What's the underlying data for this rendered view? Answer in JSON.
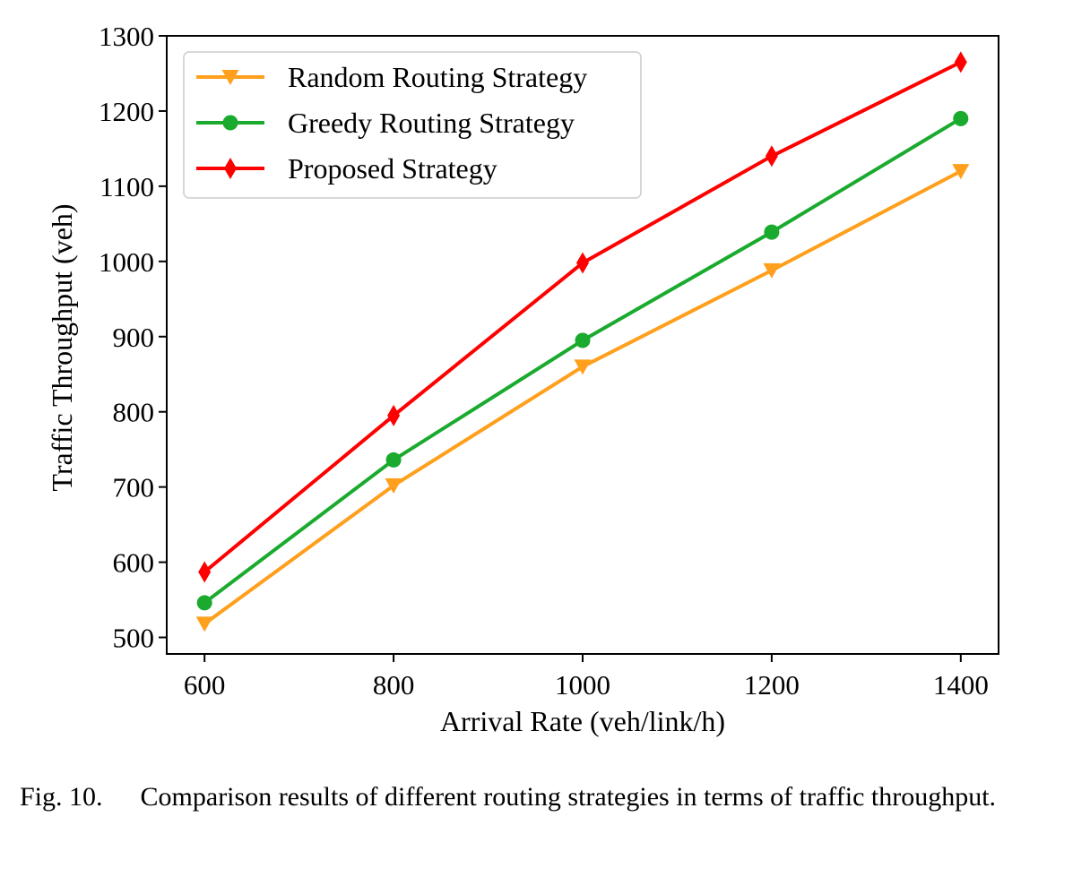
{
  "chart_data": {
    "type": "line",
    "xlabel": "Arrival Rate (veh/link/h)",
    "ylabel": "Traffic Throughput (veh)",
    "x": [
      600,
      800,
      1000,
      1200,
      1400
    ],
    "xlim": [
      560,
      1440
    ],
    "ylim": [
      478,
      1300
    ],
    "xticks": [
      600,
      800,
      1000,
      1200,
      1400
    ],
    "yticks": [
      500,
      600,
      700,
      800,
      900,
      1000,
      1100,
      1200,
      1300
    ],
    "grid": false,
    "legend_position": "top-left",
    "series": [
      {
        "name": "Random Routing Strategy",
        "color": "#ff9f1c",
        "marker": "triangle-down",
        "values": [
          518,
          702,
          860,
          988,
          1120
        ]
      },
      {
        "name": "Greedy Routing Strategy",
        "color": "#1aaa2e",
        "marker": "circle",
        "values": [
          546,
          736,
          895,
          1039,
          1190
        ]
      },
      {
        "name": "Proposed Strategy",
        "color": "#ff0000",
        "marker": "diamond",
        "values": [
          587,
          795,
          998,
          1140,
          1265
        ]
      }
    ]
  },
  "caption": {
    "label": "Fig. 10.",
    "text": "Comparison results of different routing strategies in terms of traffic throughput."
  }
}
